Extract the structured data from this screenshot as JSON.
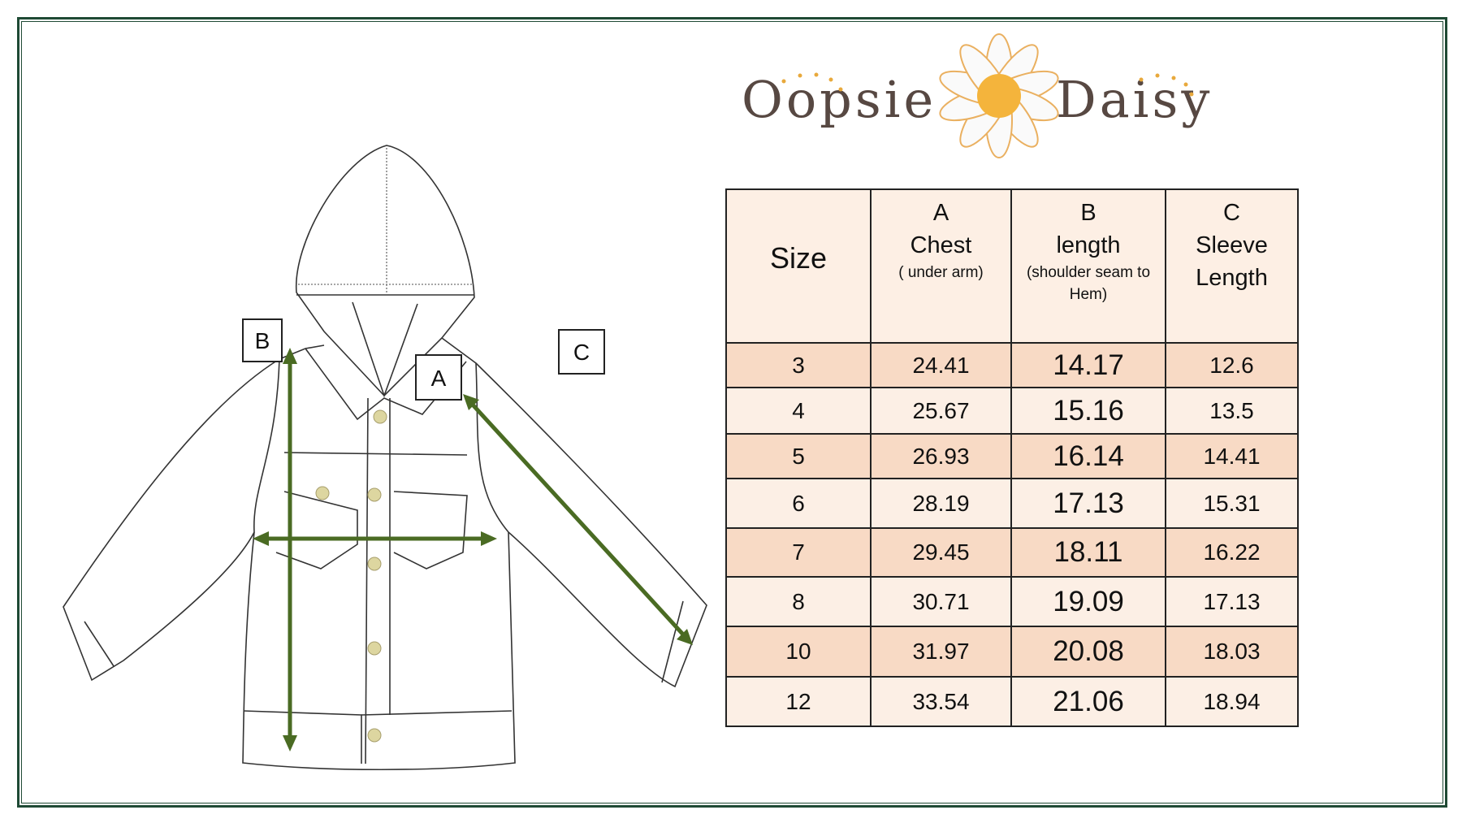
{
  "brand": {
    "name_left": "Oopsie",
    "name_right": "Daisy",
    "icon": "daisy-flower-icon"
  },
  "diagram": {
    "labels": {
      "a": "A",
      "b": "B",
      "c": "C"
    },
    "arrow_color": "#4a6b23"
  },
  "table": {
    "headers": [
      {
        "letter": "",
        "title": "Size",
        "note": ""
      },
      {
        "letter": "A",
        "title": "Chest",
        "note": "( under arm)"
      },
      {
        "letter": "B",
        "title": "length",
        "note": "(shoulder seam to Hem)"
      },
      {
        "letter": "C",
        "title": "Sleeve Length",
        "note": ""
      }
    ],
    "rows": [
      [
        "3",
        "24.41",
        "14.17",
        "12.6"
      ],
      [
        "4",
        "25.67",
        "15.16",
        "13.5"
      ],
      [
        "5",
        "26.93",
        "16.14",
        "14.41"
      ],
      [
        "6",
        "28.19",
        "17.13",
        "15.31"
      ],
      [
        "7",
        "29.45",
        "18.11",
        "16.22"
      ],
      [
        "8",
        "30.71",
        "19.09",
        "17.13"
      ],
      [
        "10",
        "31.97",
        "20.08",
        "18.03"
      ],
      [
        "12",
        "33.54",
        "21.06",
        "18.94"
      ]
    ]
  },
  "colors": {
    "frame": "#1f4a35",
    "row_odd": "#f8dac5",
    "row_even": "#fcefe5",
    "header": "#fdefe4"
  }
}
